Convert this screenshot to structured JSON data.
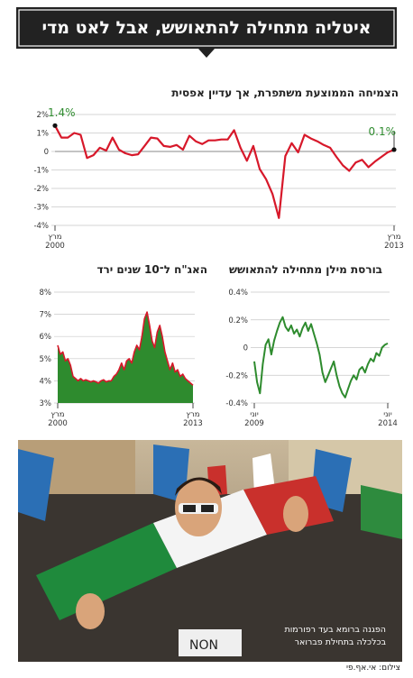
{
  "headline": "איטליה מתחילה להתאושש, אבל לאט מדי",
  "colors": {
    "line_red": "#d7182a",
    "line_green": "#2e8b2e",
    "area_green": "#2e8b2e",
    "label_green": "#2e8b2e",
    "banner": "#222222"
  },
  "chart_data": [
    {
      "id": "gdp",
      "type": "line",
      "title": "הצמיחה הממוצעת משתפרת, אך עדיין אפסית",
      "ylim": [
        -4,
        2
      ],
      "yticks": [
        "2%",
        "1%",
        "0",
        "-1%",
        "-2%",
        "-3%",
        "-4%"
      ],
      "xtick_labels": {
        "start": "מרץ",
        "start_year": "2000",
        "end": "מרץ",
        "end_year": "2013"
      },
      "annotations": {
        "first": "1.4%",
        "last": "0.1%"
      },
      "series": [
        {
          "values": [
            1.4,
            0.75,
            0.75,
            1.0,
            0.9,
            -0.35,
            -0.2,
            0.2,
            0.05,
            0.75,
            0.1,
            -0.1,
            -0.2,
            -0.15,
            0.3,
            0.75,
            0.7,
            0.3,
            0.25,
            0.35,
            0.1,
            0.85,
            0.55,
            0.4,
            0.6,
            0.6,
            0.65,
            0.65,
            1.15,
            0.2,
            -0.5,
            0.3,
            -0.95,
            -1.5,
            -2.3,
            -3.6,
            -0.25,
            0.45,
            -0.05,
            0.9,
            0.7,
            0.55,
            0.35,
            0.2,
            -0.3,
            -0.75,
            -1.05,
            -0.6,
            -0.45,
            -0.85,
            -0.55,
            -0.3,
            -0.05,
            0.1
          ]
        }
      ]
    },
    {
      "id": "milan",
      "type": "line",
      "title": "בורסת מילן מתחילה להתאושש",
      "ylim": [
        -0.4,
        0.4
      ],
      "yticks": [
        "0.4%",
        "0.2%",
        "0",
        "-0.2%",
        "-0.4%"
      ],
      "xtick_labels": {
        "start": "יוני",
        "start_year": "2009",
        "end": "יוני",
        "end_year": "2014"
      },
      "series": [
        {
          "values": [
            -0.1,
            -0.25,
            -0.33,
            -0.12,
            0.02,
            0.06,
            -0.05,
            0.05,
            0.12,
            0.18,
            0.22,
            0.15,
            0.12,
            0.16,
            0.1,
            0.13,
            0.08,
            0.14,
            0.18,
            0.12,
            0.17,
            0.1,
            0.03,
            -0.05,
            -0.18,
            -0.25,
            -0.2,
            -0.15,
            -0.1,
            -0.2,
            -0.28,
            -0.33,
            -0.36,
            -0.3,
            -0.24,
            -0.2,
            -0.23,
            -0.16,
            -0.14,
            -0.18,
            -0.12,
            -0.08,
            -0.1,
            -0.04,
            -0.06,
            0.0,
            0.02,
            0.03
          ]
        }
      ]
    },
    {
      "id": "bonds",
      "type": "area",
      "title": "האג\"ח ל־10 שנים ירד",
      "ylim": [
        3,
        8
      ],
      "yticks": [
        "8%",
        "7%",
        "6%",
        "5%",
        "4%",
        "3%"
      ],
      "xtick_labels": {
        "start": "מרץ",
        "start_year": "2000",
        "end": "מרץ",
        "end_year": "2013"
      },
      "series": [
        {
          "values": [
            5.6,
            5.2,
            5.3,
            4.9,
            5.0,
            4.7,
            4.2,
            4.1,
            4.0,
            4.1,
            4.0,
            4.05,
            4.0,
            3.95,
            4.0,
            3.95,
            3.9,
            4.0,
            4.05,
            3.95,
            4.0,
            4.0,
            4.2,
            4.3,
            4.5,
            4.8,
            4.5,
            4.9,
            5.0,
            4.8,
            5.3,
            5.6,
            5.4,
            6.0,
            6.8,
            7.1,
            6.5,
            5.8,
            5.5,
            6.2,
            6.5,
            6.0,
            5.3,
            4.9,
            4.5,
            4.8,
            4.4,
            4.5,
            4.2,
            4.3,
            4.1,
            4.0,
            3.9,
            3.8
          ]
        }
      ]
    }
  ],
  "photo": {
    "caption_line1": "הפגנה ברומא בעד רפורמות",
    "caption_line2": "בכלכלה בתחילת פברואר",
    "sign_text": "NON"
  },
  "credit": "צילום: אי.אף.פי"
}
